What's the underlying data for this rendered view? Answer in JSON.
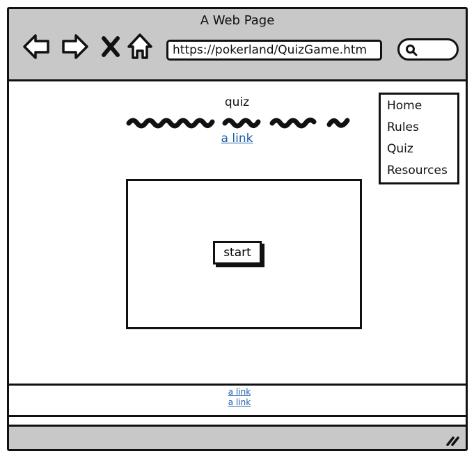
{
  "window": {
    "title": "A Web Page"
  },
  "toolbar": {
    "back_icon": "back-arrow-icon",
    "forward_icon": "forward-arrow-icon",
    "stop_icon": "close-x-icon",
    "home_icon": "home-icon",
    "url": "https://pokerland/QuizGame.htm",
    "search_icon": "search-icon"
  },
  "page": {
    "title": "quiz",
    "top_link": "a link"
  },
  "menu": {
    "items": [
      {
        "label": "Home"
      },
      {
        "label": "Rules"
      },
      {
        "label": "Quiz"
      },
      {
        "label": "Resources"
      }
    ]
  },
  "quiz": {
    "start_label": "start"
  },
  "footer": {
    "links": [
      {
        "label": "a link"
      },
      {
        "label": "a link"
      }
    ]
  },
  "colors": {
    "chrome": "#c8c8c8",
    "link": "#1a5fa8",
    "ink": "#111111"
  }
}
